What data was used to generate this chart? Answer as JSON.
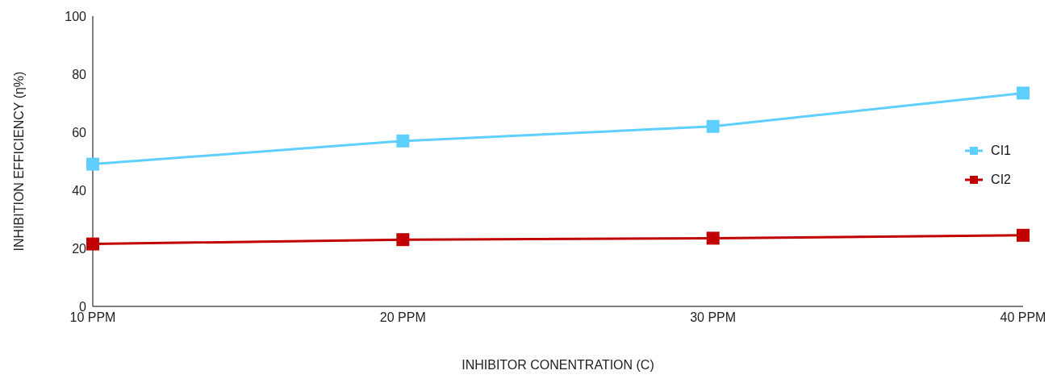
{
  "chart_data": {
    "type": "line",
    "xlabel": "INHIBITOR CONENTRATION (C)",
    "ylabel": "INHIBITION EFFICIENCY (η%)",
    "categories": [
      "10 PPM",
      "20 PPM",
      "30 PPM",
      "40 PPM"
    ],
    "series": [
      {
        "name": "CI1",
        "color": "#5ecfff",
        "values": [
          49,
          57,
          62,
          73.5
        ]
      },
      {
        "name": "CI2",
        "color": "#c00000",
        "values": [
          21.5,
          23,
          23.5,
          24.5
        ]
      }
    ],
    "ylim": [
      0,
      100
    ],
    "yticks": [
      0,
      20,
      40,
      60,
      80,
      100
    ],
    "grid": false,
    "legend": "right",
    "marker": "square",
    "line_style": "solid"
  }
}
